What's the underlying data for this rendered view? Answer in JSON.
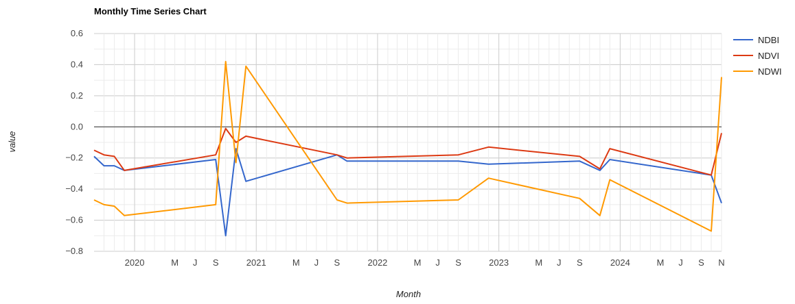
{
  "chart_data": {
    "type": "line",
    "title": "Monthly Time Series Chart",
    "xlabel": "Month",
    "ylabel": "value",
    "ylim": [
      -0.8,
      0.6
    ],
    "y_ticks": [
      0.6,
      0.4,
      0.2,
      0.0,
      -0.2,
      -0.4,
      -0.6,
      -0.8
    ],
    "y_tick_labels": [
      "0.6",
      "0.4",
      "0.2",
      "0.0",
      "−0.2",
      "−0.4",
      "−0.6",
      "−0.8"
    ],
    "xlim": [
      "2019-09-01",
      "2024-11-01"
    ],
    "x_ticks": [
      {
        "date": "2020-01-01",
        "label": "2020",
        "major": true
      },
      {
        "date": "2020-05-01",
        "label": "M",
        "major": false
      },
      {
        "date": "2020-07-01",
        "label": "J",
        "major": false
      },
      {
        "date": "2020-09-01",
        "label": "S",
        "major": false
      },
      {
        "date": "2021-01-01",
        "label": "2021",
        "major": true
      },
      {
        "date": "2021-05-01",
        "label": "M",
        "major": false
      },
      {
        "date": "2021-07-01",
        "label": "J",
        "major": false
      },
      {
        "date": "2021-09-01",
        "label": "S",
        "major": false
      },
      {
        "date": "2022-01-01",
        "label": "2022",
        "major": true
      },
      {
        "date": "2022-05-01",
        "label": "M",
        "major": false
      },
      {
        "date": "2022-07-01",
        "label": "J",
        "major": false
      },
      {
        "date": "2022-09-01",
        "label": "S",
        "major": false
      },
      {
        "date": "2023-01-01",
        "label": "2023",
        "major": true
      },
      {
        "date": "2023-05-01",
        "label": "M",
        "major": false
      },
      {
        "date": "2023-07-01",
        "label": "J",
        "major": false
      },
      {
        "date": "2023-09-01",
        "label": "S",
        "major": false
      },
      {
        "date": "2024-01-01",
        "label": "2024",
        "major": true
      },
      {
        "date": "2024-05-01",
        "label": "M",
        "major": false
      },
      {
        "date": "2024-07-01",
        "label": "J",
        "major": false
      },
      {
        "date": "2024-09-01",
        "label": "S",
        "major": false
      },
      {
        "date": "2024-11-01",
        "label": "N",
        "major": false
      }
    ],
    "x_minor_ticks": [
      "2019-10-01",
      "2019-11-01",
      "2019-12-01",
      "2020-02-01",
      "2020-03-01",
      "2020-04-01",
      "2020-06-01",
      "2020-08-01",
      "2020-10-01",
      "2020-11-01",
      "2020-12-01",
      "2021-02-01",
      "2021-03-01",
      "2021-04-01",
      "2021-06-01",
      "2021-08-01",
      "2021-10-01",
      "2021-11-01",
      "2021-12-01",
      "2022-02-01",
      "2022-03-01",
      "2022-04-01",
      "2022-06-01",
      "2022-08-01",
      "2022-10-01",
      "2022-11-01",
      "2022-12-01",
      "2023-02-01",
      "2023-03-01",
      "2023-04-01",
      "2023-06-01",
      "2023-08-01",
      "2023-10-01",
      "2023-11-01",
      "2023-12-01",
      "2024-02-01",
      "2024-03-01",
      "2024-04-01",
      "2024-06-01",
      "2024-08-01",
      "2024-10-01"
    ],
    "grid": true,
    "legend_position": "right",
    "series": [
      {
        "name": "NDBI",
        "color": "#3366cc",
        "points": [
          [
            "2019-09-01",
            -0.19
          ],
          [
            "2019-10-01",
            -0.25
          ],
          [
            "2019-11-01",
            -0.25
          ],
          [
            "2019-12-01",
            -0.28
          ],
          [
            "2020-09-01",
            -0.21
          ],
          [
            "2020-10-01",
            -0.7
          ],
          [
            "2020-11-01",
            -0.14
          ],
          [
            "2020-12-01",
            -0.35
          ],
          [
            "2021-09-01",
            -0.18
          ],
          [
            "2021-10-01",
            -0.22
          ],
          [
            "2022-09-01",
            -0.22
          ],
          [
            "2022-12-01",
            -0.24
          ],
          [
            "2023-09-01",
            -0.22
          ],
          [
            "2023-11-01",
            -0.28
          ],
          [
            "2023-12-01",
            -0.21
          ],
          [
            "2024-10-01",
            -0.31
          ],
          [
            "2024-11-01",
            -0.49
          ]
        ]
      },
      {
        "name": "NDVI",
        "color": "#dc3912",
        "points": [
          [
            "2019-09-01",
            -0.15
          ],
          [
            "2019-10-01",
            -0.18
          ],
          [
            "2019-11-01",
            -0.19
          ],
          [
            "2019-12-01",
            -0.28
          ],
          [
            "2020-09-01",
            -0.18
          ],
          [
            "2020-10-01",
            -0.01
          ],
          [
            "2020-11-01",
            -0.1
          ],
          [
            "2020-12-01",
            -0.06
          ],
          [
            "2021-09-01",
            -0.18
          ],
          [
            "2021-10-01",
            -0.2
          ],
          [
            "2022-09-01",
            -0.18
          ],
          [
            "2022-12-01",
            -0.13
          ],
          [
            "2023-09-01",
            -0.19
          ],
          [
            "2023-11-01",
            -0.27
          ],
          [
            "2023-12-01",
            -0.14
          ],
          [
            "2024-10-01",
            -0.31
          ],
          [
            "2024-11-01",
            -0.04
          ]
        ]
      },
      {
        "name": "NDWI",
        "color": "#ff9900",
        "points": [
          [
            "2019-09-01",
            -0.47
          ],
          [
            "2019-10-01",
            -0.5
          ],
          [
            "2019-11-01",
            -0.51
          ],
          [
            "2019-12-01",
            -0.57
          ],
          [
            "2020-09-01",
            -0.5
          ],
          [
            "2020-10-01",
            0.42
          ],
          [
            "2020-11-01",
            -0.23
          ],
          [
            "2020-12-01",
            0.39
          ],
          [
            "2021-09-01",
            -0.47
          ],
          [
            "2021-10-01",
            -0.49
          ],
          [
            "2022-09-01",
            -0.47
          ],
          [
            "2022-12-01",
            -0.33
          ],
          [
            "2023-09-01",
            -0.46
          ],
          [
            "2023-11-01",
            -0.57
          ],
          [
            "2023-12-01",
            -0.34
          ],
          [
            "2024-10-01",
            -0.67
          ],
          [
            "2024-11-01",
            0.32
          ]
        ]
      }
    ]
  }
}
